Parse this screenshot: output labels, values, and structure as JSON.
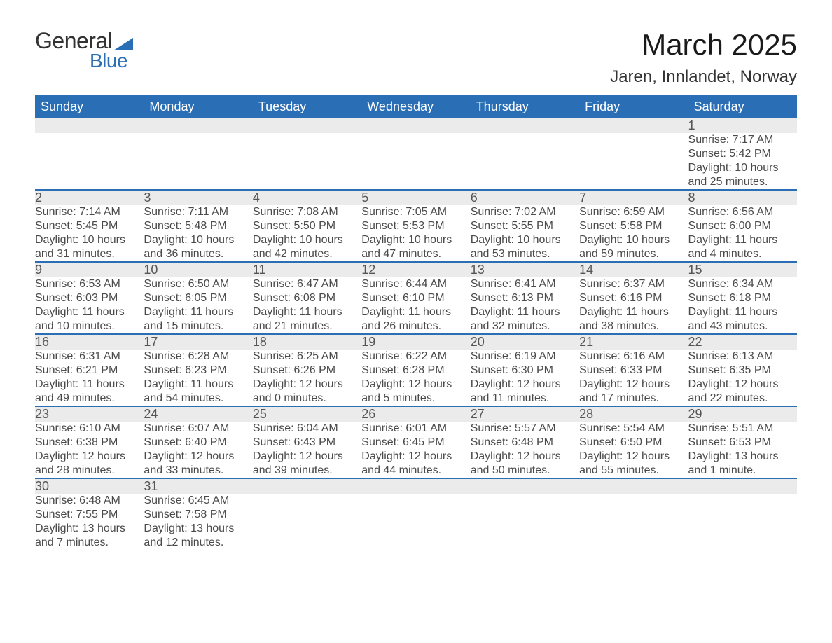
{
  "logo": {
    "general": "General",
    "blue": "Blue",
    "triangle_color": "#2a6fb5"
  },
  "title": "March 2025",
  "location": "Jaren, Innlandet, Norway",
  "colors": {
    "header_bg": "#2a6fb5",
    "header_text": "#ffffff",
    "daynum_bg": "#ebebeb",
    "row_border": "#2a6fb5",
    "body_text": "#4a4a4a"
  },
  "day_headers": [
    "Sunday",
    "Monday",
    "Tuesday",
    "Wednesday",
    "Thursday",
    "Friday",
    "Saturday"
  ],
  "weeks": [
    [
      null,
      null,
      null,
      null,
      null,
      null,
      {
        "n": "1",
        "sunrise": "Sunrise: 7:17 AM",
        "sunset": "Sunset: 5:42 PM",
        "daylight1": "Daylight: 10 hours",
        "daylight2": "and 25 minutes."
      }
    ],
    [
      {
        "n": "2",
        "sunrise": "Sunrise: 7:14 AM",
        "sunset": "Sunset: 5:45 PM",
        "daylight1": "Daylight: 10 hours",
        "daylight2": "and 31 minutes."
      },
      {
        "n": "3",
        "sunrise": "Sunrise: 7:11 AM",
        "sunset": "Sunset: 5:48 PM",
        "daylight1": "Daylight: 10 hours",
        "daylight2": "and 36 minutes."
      },
      {
        "n": "4",
        "sunrise": "Sunrise: 7:08 AM",
        "sunset": "Sunset: 5:50 PM",
        "daylight1": "Daylight: 10 hours",
        "daylight2": "and 42 minutes."
      },
      {
        "n": "5",
        "sunrise": "Sunrise: 7:05 AM",
        "sunset": "Sunset: 5:53 PM",
        "daylight1": "Daylight: 10 hours",
        "daylight2": "and 47 minutes."
      },
      {
        "n": "6",
        "sunrise": "Sunrise: 7:02 AM",
        "sunset": "Sunset: 5:55 PM",
        "daylight1": "Daylight: 10 hours",
        "daylight2": "and 53 minutes."
      },
      {
        "n": "7",
        "sunrise": "Sunrise: 6:59 AM",
        "sunset": "Sunset: 5:58 PM",
        "daylight1": "Daylight: 10 hours",
        "daylight2": "and 59 minutes."
      },
      {
        "n": "8",
        "sunrise": "Sunrise: 6:56 AM",
        "sunset": "Sunset: 6:00 PM",
        "daylight1": "Daylight: 11 hours",
        "daylight2": "and 4 minutes."
      }
    ],
    [
      {
        "n": "9",
        "sunrise": "Sunrise: 6:53 AM",
        "sunset": "Sunset: 6:03 PM",
        "daylight1": "Daylight: 11 hours",
        "daylight2": "and 10 minutes."
      },
      {
        "n": "10",
        "sunrise": "Sunrise: 6:50 AM",
        "sunset": "Sunset: 6:05 PM",
        "daylight1": "Daylight: 11 hours",
        "daylight2": "and 15 minutes."
      },
      {
        "n": "11",
        "sunrise": "Sunrise: 6:47 AM",
        "sunset": "Sunset: 6:08 PM",
        "daylight1": "Daylight: 11 hours",
        "daylight2": "and 21 minutes."
      },
      {
        "n": "12",
        "sunrise": "Sunrise: 6:44 AM",
        "sunset": "Sunset: 6:10 PM",
        "daylight1": "Daylight: 11 hours",
        "daylight2": "and 26 minutes."
      },
      {
        "n": "13",
        "sunrise": "Sunrise: 6:41 AM",
        "sunset": "Sunset: 6:13 PM",
        "daylight1": "Daylight: 11 hours",
        "daylight2": "and 32 minutes."
      },
      {
        "n": "14",
        "sunrise": "Sunrise: 6:37 AM",
        "sunset": "Sunset: 6:16 PM",
        "daylight1": "Daylight: 11 hours",
        "daylight2": "and 38 minutes."
      },
      {
        "n": "15",
        "sunrise": "Sunrise: 6:34 AM",
        "sunset": "Sunset: 6:18 PM",
        "daylight1": "Daylight: 11 hours",
        "daylight2": "and 43 minutes."
      }
    ],
    [
      {
        "n": "16",
        "sunrise": "Sunrise: 6:31 AM",
        "sunset": "Sunset: 6:21 PM",
        "daylight1": "Daylight: 11 hours",
        "daylight2": "and 49 minutes."
      },
      {
        "n": "17",
        "sunrise": "Sunrise: 6:28 AM",
        "sunset": "Sunset: 6:23 PM",
        "daylight1": "Daylight: 11 hours",
        "daylight2": "and 54 minutes."
      },
      {
        "n": "18",
        "sunrise": "Sunrise: 6:25 AM",
        "sunset": "Sunset: 6:26 PM",
        "daylight1": "Daylight: 12 hours",
        "daylight2": "and 0 minutes."
      },
      {
        "n": "19",
        "sunrise": "Sunrise: 6:22 AM",
        "sunset": "Sunset: 6:28 PM",
        "daylight1": "Daylight: 12 hours",
        "daylight2": "and 5 minutes."
      },
      {
        "n": "20",
        "sunrise": "Sunrise: 6:19 AM",
        "sunset": "Sunset: 6:30 PM",
        "daylight1": "Daylight: 12 hours",
        "daylight2": "and 11 minutes."
      },
      {
        "n": "21",
        "sunrise": "Sunrise: 6:16 AM",
        "sunset": "Sunset: 6:33 PM",
        "daylight1": "Daylight: 12 hours",
        "daylight2": "and 17 minutes."
      },
      {
        "n": "22",
        "sunrise": "Sunrise: 6:13 AM",
        "sunset": "Sunset: 6:35 PM",
        "daylight1": "Daylight: 12 hours",
        "daylight2": "and 22 minutes."
      }
    ],
    [
      {
        "n": "23",
        "sunrise": "Sunrise: 6:10 AM",
        "sunset": "Sunset: 6:38 PM",
        "daylight1": "Daylight: 12 hours",
        "daylight2": "and 28 minutes."
      },
      {
        "n": "24",
        "sunrise": "Sunrise: 6:07 AM",
        "sunset": "Sunset: 6:40 PM",
        "daylight1": "Daylight: 12 hours",
        "daylight2": "and 33 minutes."
      },
      {
        "n": "25",
        "sunrise": "Sunrise: 6:04 AM",
        "sunset": "Sunset: 6:43 PM",
        "daylight1": "Daylight: 12 hours",
        "daylight2": "and 39 minutes."
      },
      {
        "n": "26",
        "sunrise": "Sunrise: 6:01 AM",
        "sunset": "Sunset: 6:45 PM",
        "daylight1": "Daylight: 12 hours",
        "daylight2": "and 44 minutes."
      },
      {
        "n": "27",
        "sunrise": "Sunrise: 5:57 AM",
        "sunset": "Sunset: 6:48 PM",
        "daylight1": "Daylight: 12 hours",
        "daylight2": "and 50 minutes."
      },
      {
        "n": "28",
        "sunrise": "Sunrise: 5:54 AM",
        "sunset": "Sunset: 6:50 PM",
        "daylight1": "Daylight: 12 hours",
        "daylight2": "and 55 minutes."
      },
      {
        "n": "29",
        "sunrise": "Sunrise: 5:51 AM",
        "sunset": "Sunset: 6:53 PM",
        "daylight1": "Daylight: 13 hours",
        "daylight2": "and 1 minute."
      }
    ],
    [
      {
        "n": "30",
        "sunrise": "Sunrise: 6:48 AM",
        "sunset": "Sunset: 7:55 PM",
        "daylight1": "Daylight: 13 hours",
        "daylight2": "and 7 minutes."
      },
      {
        "n": "31",
        "sunrise": "Sunrise: 6:45 AM",
        "sunset": "Sunset: 7:58 PM",
        "daylight1": "Daylight: 13 hours",
        "daylight2": "and 12 minutes."
      },
      null,
      null,
      null,
      null,
      null
    ]
  ]
}
